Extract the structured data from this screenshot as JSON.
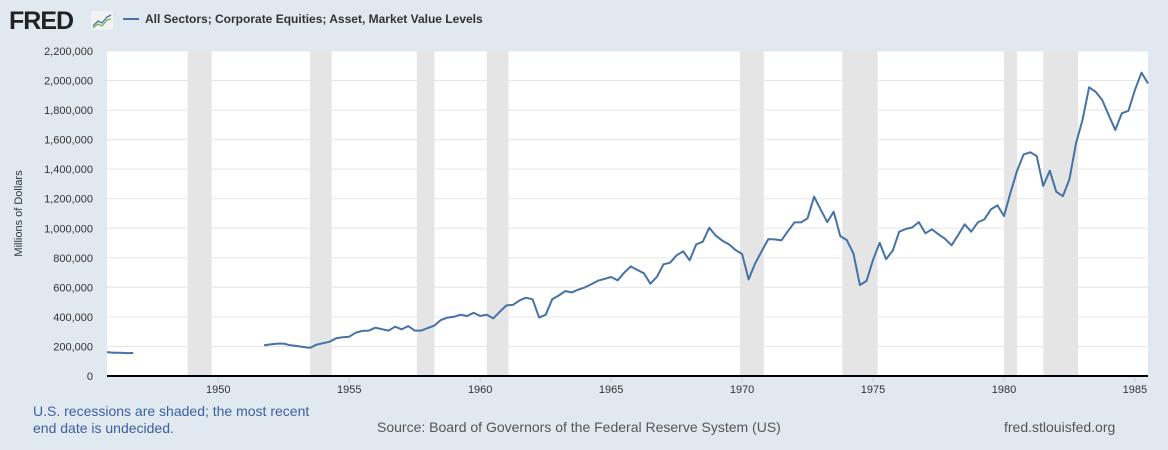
{
  "header": {
    "logo_text": "FRED",
    "series_title": "All Sectors; Corporate Equities; Asset, Market Value Levels"
  },
  "footer": {
    "recession_note_line1": "U.S. recessions are shaded; the most recent",
    "recession_note_line2": "end date is undecided.",
    "source": "Source: Board of Governors of the Federal Reserve System (US)",
    "site": "fred.stlouisfed.org"
  },
  "colors": {
    "line": "#4572a7",
    "recession": "#e5e5e5",
    "grid": "#e6e6e6",
    "note": "#3b5fa0"
  },
  "chart_data": {
    "type": "line",
    "title": "All Sectors; Corporate Equities; Asset, Market Value Levels",
    "xlabel": "",
    "ylabel": "Millions of Dollars",
    "xlim": [
      1945.75,
      1985.5
    ],
    "ylim": [
      0,
      2200000
    ],
    "yticks": [
      0,
      200000,
      400000,
      600000,
      800000,
      1000000,
      1200000,
      1400000,
      1600000,
      1800000,
      2000000,
      2200000
    ],
    "ytick_labels": [
      "0",
      "200,000",
      "400,000",
      "600,000",
      "800,000",
      "1,000,000",
      "1,200,000",
      "1,400,000",
      "1,600,000",
      "1,800,000",
      "2,000,000",
      "2,200,000"
    ],
    "xticks": [
      1950,
      1955,
      1960,
      1965,
      1970,
      1975,
      1980,
      1985
    ],
    "xtick_labels": [
      "1950",
      "1955",
      "1960",
      "1965",
      "1970",
      "1975",
      "1980",
      "1985"
    ],
    "grid": true,
    "recessions": [
      [
        1948.83,
        1949.75
      ],
      [
        1953.5,
        1954.33
      ],
      [
        1957.58,
        1958.25
      ],
      [
        1960.25,
        1961.08
      ],
      [
        1969.92,
        1970.83
      ],
      [
        1973.83,
        1975.17
      ],
      [
        1980.0,
        1980.5
      ],
      [
        1981.5,
        1982.83
      ]
    ],
    "series": [
      {
        "name": "All Sectors; Corporate Equities; Asset, Market Value Levels",
        "start": 1945.75,
        "step": 0.25,
        "values": [
          162000,
          158000,
          157000,
          155000,
          156000
        ]
      },
      {
        "name": "All Sectors; Corporate Equities; Asset, Market Value Levels",
        "start": 1951.75,
        "step": 0.25,
        "values": [
          208000,
          214000,
          219000,
          219000,
          208000,
          203000,
          196000,
          190000,
          212000,
          222000,
          232000,
          255000,
          262000,
          266000,
          293000,
          305000,
          307000,
          327000,
          317000,
          307000,
          334000,
          316000,
          338000,
          307000,
          307000,
          325000,
          341000,
          379000,
          395000,
          401000,
          415000,
          406000,
          428000,
          406000,
          415000,
          390000,
          435000,
          478000,
          481000,
          512000,
          530000,
          519000,
          395000,
          415000,
          519000,
          545000,
          575000,
          566000,
          585000,
          600000,
          622000,
          645000,
          657000,
          670000,
          648000,
          699000,
          742000,
          718000,
          695000,
          625000,
          672000,
          756000,
          767000,
          817000,
          844000,
          783000,
          891000,
          909000,
          1004000,
          950000,
          916000,
          891000,
          853000,
          826000,
          654000,
          763000,
          845000,
          927000,
          925000,
          918000,
          980000,
          1040000,
          1040000,
          1067000,
          1214000,
          1128000,
          1042000,
          1112000,
          947000,
          920000,
          830000,
          616000,
          643000,
          785000,
          902000,
          791000,
          848000,
          977000,
          995000,
          1006000,
          1042000,
          966000,
          993000,
          959000,
          929000,
          885000,
          954000,
          1027000,
          977000,
          1040000,
          1060000,
          1128000,
          1155000,
          1083000,
          1241000,
          1390000,
          1500000,
          1514000,
          1489000,
          1286000,
          1390000,
          1247000,
          1218000,
          1331000,
          1575000,
          1733000,
          1954000,
          1924000,
          1868000,
          1766000,
          1665000,
          1778000,
          1795000,
          1936000,
          2053000,
          1981000
        ]
      }
    ]
  }
}
